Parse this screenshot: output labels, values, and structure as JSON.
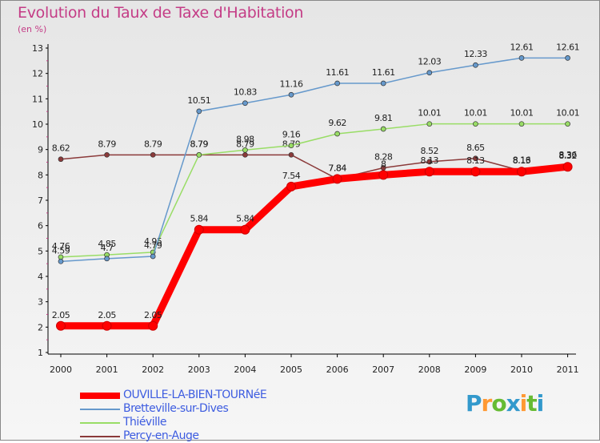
{
  "chart_data": {
    "type": "line",
    "title": "Evolution du Taux de Taxe d'Habitation",
    "subtitle": "(en %)",
    "xlabel": "",
    "ylabel": "",
    "categories": [
      "2000",
      "2001",
      "2002",
      "2003",
      "2004",
      "2005",
      "2006",
      "2007",
      "2008",
      "2009",
      "2010",
      "2011"
    ],
    "ylim": [
      1,
      13
    ],
    "yticks": [
      "1",
      "2",
      "3",
      "4",
      "5",
      "6",
      "7",
      "8",
      "9",
      "10",
      "11",
      "12",
      "13"
    ],
    "grid": false,
    "legend_position": "bottom-left",
    "series": [
      {
        "name": "OUVILLE-LA-BIEN-TOURNéE",
        "color": "#ff0000",
        "values": [
          2.05,
          2.05,
          2.05,
          5.84,
          5.84,
          7.54,
          7.84,
          8.0,
          8.13,
          8.13,
          8.13,
          8.32
        ],
        "labels": [
          "2.05",
          "2.05",
          "2.05",
          "5.84",
          "5.84",
          "7.54",
          "7.84",
          "8",
          "8.13",
          "8.13",
          "8.13",
          "8.32"
        ]
      },
      {
        "name": "Bretteville-sur-Dives",
        "color": "#6699cc",
        "values": [
          4.59,
          4.7,
          4.79,
          10.51,
          10.83,
          11.16,
          11.61,
          11.61,
          12.03,
          12.33,
          12.61,
          12.61
        ],
        "labels": [
          "4.59",
          "4.7",
          "4.79",
          "10.51",
          "10.83",
          "11.16",
          "11.61",
          "11.61",
          "12.03",
          "12.33",
          "12.61",
          "12.61"
        ]
      },
      {
        "name": "Thiéville",
        "color": "#99dd66",
        "values": [
          4.76,
          4.85,
          4.95,
          8.79,
          8.98,
          9.16,
          9.62,
          9.81,
          10.01,
          10.01,
          10.01,
          10.01
        ],
        "labels": [
          "4.76",
          "4.85",
          "4.95",
          "8.79",
          "8.98",
          "9.16",
          "9.62",
          "9.81",
          "10.01",
          "10.01",
          "10.01",
          "10.01"
        ]
      },
      {
        "name": "Percy-en-Auge",
        "color": "#8b3a3a",
        "values": [
          8.62,
          8.79,
          8.79,
          8.79,
          8.79,
          8.79,
          7.84,
          8.28,
          8.52,
          8.65,
          8.16,
          8.36
        ],
        "labels": [
          "8.62",
          "8.79",
          "8.79",
          "8.79",
          "8.79",
          "8.79",
          "7.84",
          "8.28",
          "8.52",
          "8.65",
          "8.16",
          "8.36"
        ]
      }
    ]
  },
  "logo": {
    "letters": [
      "P",
      "r",
      "o",
      "x",
      "i",
      "t",
      "i"
    ],
    "colors": [
      "#3399cc",
      "#ff9933",
      "#66bb33",
      "#3399cc",
      "#ff9933",
      "#66bb33",
      "#3399cc"
    ]
  }
}
